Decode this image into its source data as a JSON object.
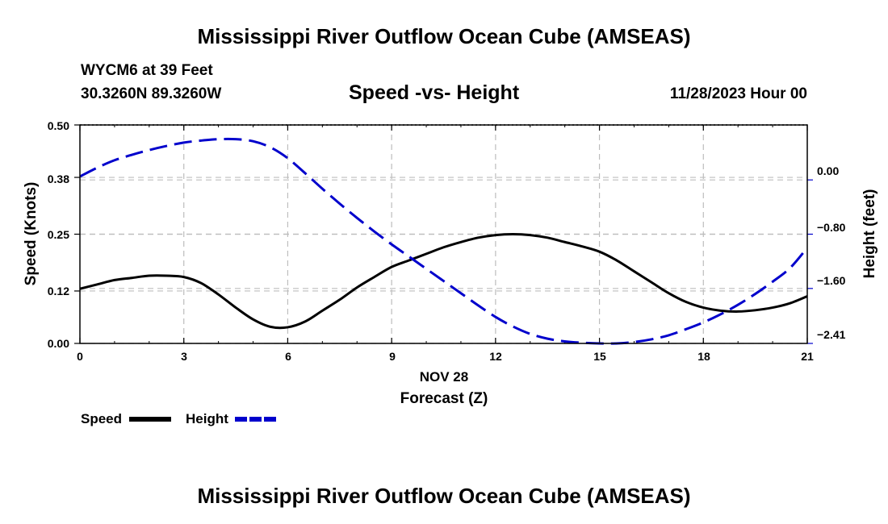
{
  "header": {
    "title_top": "Mississippi River Outflow Ocean Cube (AMSEAS)",
    "station": "WYCM6 at 39 Feet",
    "coords": "30.3260N  89.3260W",
    "plot_title": "Speed -vs- Height",
    "datetime": "11/28/2023 Hour 00",
    "title_bottom": "Mississippi River Outflow Ocean Cube (AMSEAS)"
  },
  "chart_data": {
    "type": "line",
    "title": "Speed -vs- Height",
    "x_axis": {
      "label": "Forecast (Z)",
      "date_label": "NOV 28",
      "range": [
        0,
        21
      ],
      "ticks": [
        0,
        3,
        6,
        9,
        12,
        15,
        18,
        21
      ],
      "tick_labels": [
        "0",
        "3",
        "6",
        "9",
        "12",
        "15",
        "18",
        "21"
      ]
    },
    "y_left": {
      "label": "Speed (Knots)",
      "range": [
        0,
        0.5
      ],
      "ticks": [
        0,
        0.12,
        0.25,
        0.38,
        0.5
      ],
      "tick_labels": [
        "0.00",
        "0.12",
        "0.25",
        "0.38",
        "0.50"
      ]
    },
    "y_right": {
      "label": "Height (feet)",
      "range": [
        -2.41,
        0.81
      ],
      "ticks": [
        -2.41,
        -1.6,
        -0.8,
        0.0
      ],
      "tick_labels": [
        "−2.41",
        "−1.60",
        "−0.80",
        "0.00"
      ]
    },
    "grid": true,
    "legend": {
      "position": "bottom-left",
      "items": [
        {
          "name": "Speed",
          "color": "#000000",
          "style": "solid"
        },
        {
          "name": "Height",
          "color": "#0000cc",
          "style": "dashed"
        }
      ]
    },
    "series": [
      {
        "name": "Speed",
        "axis": "left",
        "color": "#000000",
        "style": "solid",
        "x": [
          0,
          0.5,
          1,
          1.5,
          2,
          2.5,
          3,
          3.5,
          4,
          4.5,
          5,
          5.5,
          6,
          6.5,
          7,
          7.5,
          8,
          8.5,
          9,
          9.5,
          10,
          10.5,
          11,
          11.5,
          12,
          12.5,
          13,
          13.5,
          14,
          14.5,
          15,
          15.5,
          16,
          16.5,
          17,
          17.5,
          18,
          18.5,
          19,
          19.5,
          20,
          20.5,
          21
        ],
        "values": [
          0.125,
          0.135,
          0.145,
          0.15,
          0.155,
          0.155,
          0.152,
          0.138,
          0.112,
          0.082,
          0.055,
          0.038,
          0.037,
          0.05,
          0.075,
          0.1,
          0.128,
          0.152,
          0.175,
          0.19,
          0.205,
          0.22,
          0.232,
          0.242,
          0.248,
          0.25,
          0.248,
          0.242,
          0.232,
          0.222,
          0.21,
          0.19,
          0.165,
          0.14,
          0.115,
          0.095,
          0.082,
          0.075,
          0.073,
          0.076,
          0.082,
          0.092,
          0.108
        ]
      },
      {
        "name": "Height",
        "axis": "right",
        "color": "#0000cc",
        "style": "dashed",
        "x": [
          0,
          0.5,
          1,
          1.5,
          2,
          2.5,
          3,
          3.5,
          4,
          4.5,
          5,
          5.5,
          6,
          6.5,
          7,
          7.5,
          8,
          8.5,
          9,
          9.5,
          10,
          10.5,
          11,
          11.5,
          12,
          12.5,
          13,
          13.5,
          14,
          14.5,
          15,
          15.5,
          16,
          16.5,
          17,
          17.5,
          18,
          18.5,
          19,
          19.5,
          20,
          20.5,
          21
        ],
        "values": [
          0.05,
          0.18,
          0.29,
          0.37,
          0.44,
          0.5,
          0.55,
          0.58,
          0.6,
          0.6,
          0.57,
          0.48,
          0.32,
          0.1,
          -0.13,
          -0.35,
          -0.56,
          -0.76,
          -0.95,
          -1.13,
          -1.31,
          -1.49,
          -1.67,
          -1.85,
          -2.02,
          -2.16,
          -2.27,
          -2.34,
          -2.38,
          -2.4,
          -2.41,
          -2.41,
          -2.39,
          -2.35,
          -2.29,
          -2.2,
          -2.1,
          -1.98,
          -1.84,
          -1.68,
          -1.5,
          -1.3,
          -1.0
        ]
      }
    ]
  }
}
